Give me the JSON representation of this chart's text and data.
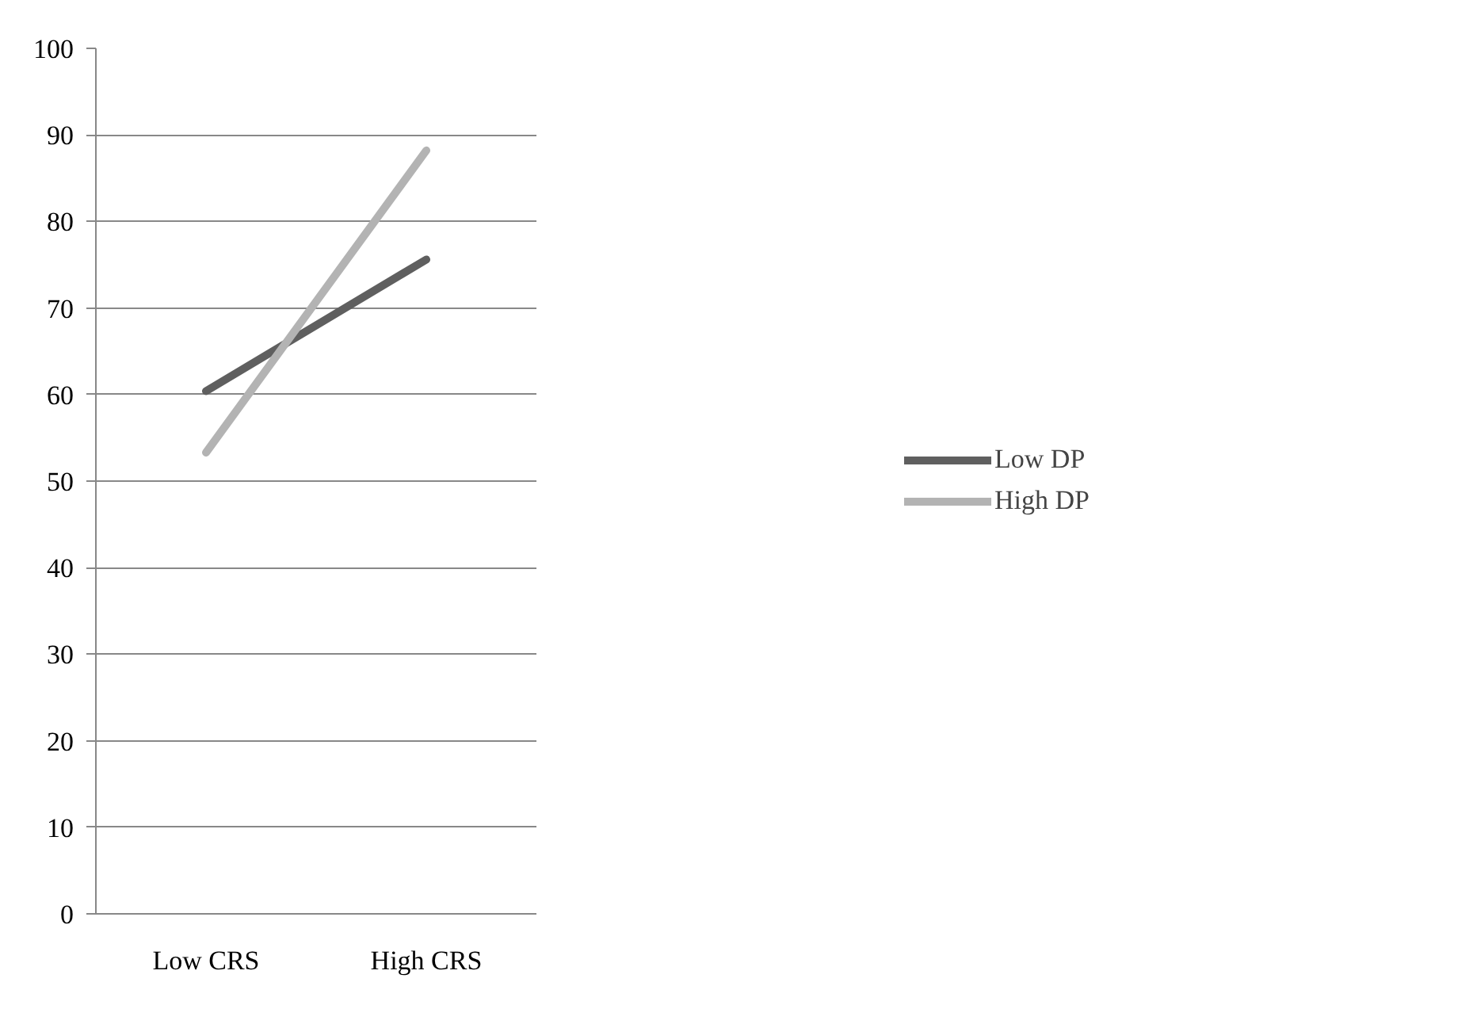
{
  "chart_data": {
    "type": "line",
    "categories": [
      "Low CRS",
      "High CRS"
    ],
    "series": [
      {
        "name": "Low DP",
        "color": "#5f5f5f",
        "values": [
          60.4,
          75.6
        ]
      },
      {
        "name": "High DP",
        "color": "#b3b3b3",
        "values": [
          53.3,
          88.2
        ]
      }
    ],
    "ylim": [
      0,
      100
    ],
    "yticks": [
      0,
      10,
      20,
      30,
      40,
      50,
      60,
      70,
      80,
      90,
      100
    ],
    "grid": "y",
    "legend": "right",
    "line_style": "solid",
    "marker": "none"
  }
}
